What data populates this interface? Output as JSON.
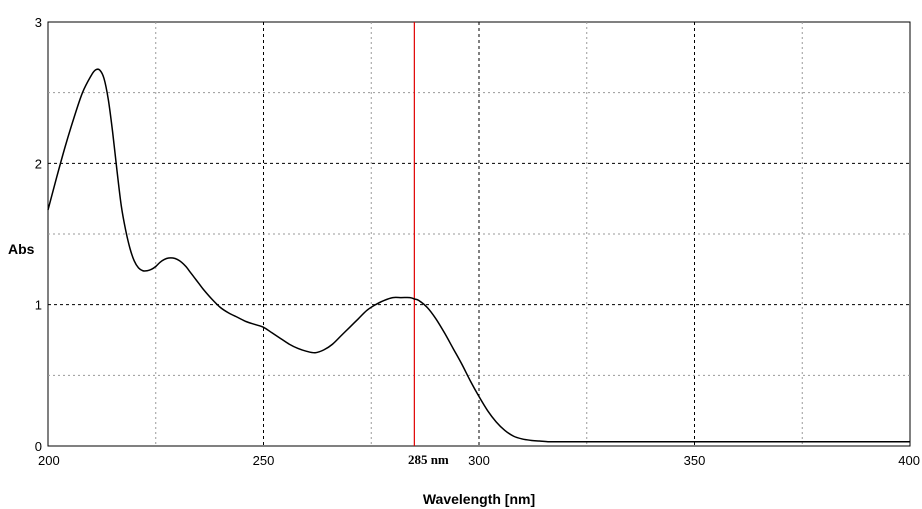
{
  "chart_data": {
    "type": "line",
    "title": "",
    "xlabel": "Wavelength [nm]",
    "ylabel": "Abs",
    "xlim": [
      200,
      400
    ],
    "ylim": [
      0,
      3
    ],
    "x_ticks": [
      "200",
      "250",
      "300",
      "350",
      "400"
    ],
    "y_ticks": [
      "0",
      "1",
      "2",
      "3"
    ],
    "grid": true,
    "marker_line": {
      "x": 285,
      "color": "#e00000"
    },
    "annotation": {
      "text": "285 nm",
      "x": 285
    },
    "line_color": "#000000",
    "series": [
      {
        "x": [
          200,
          202,
          204,
          206,
          208,
          210,
          211,
          212,
          213,
          214,
          215,
          216,
          217,
          218,
          219,
          220,
          221,
          222,
          223,
          224,
          225,
          226,
          227,
          228,
          229,
          230,
          231,
          232,
          233,
          234,
          235,
          236,
          238,
          240,
          242,
          244,
          246,
          248,
          250,
          252,
          254,
          256,
          258,
          260,
          262,
          264,
          266,
          268,
          270,
          272,
          274,
          276,
          278,
          280,
          282,
          284,
          285,
          286,
          288,
          290,
          292,
          294,
          296,
          298,
          300,
          302,
          304,
          306,
          308,
          310,
          312,
          314,
          316,
          318,
          320,
          322,
          325,
          330,
          340,
          350,
          360,
          370,
          380,
          390,
          400
        ],
        "y": [
          1.67,
          1.9,
          2.12,
          2.32,
          2.5,
          2.62,
          2.66,
          2.66,
          2.6,
          2.45,
          2.22,
          1.95,
          1.7,
          1.53,
          1.4,
          1.31,
          1.26,
          1.24,
          1.24,
          1.25,
          1.27,
          1.3,
          1.32,
          1.33,
          1.33,
          1.32,
          1.3,
          1.27,
          1.23,
          1.19,
          1.15,
          1.11,
          1.04,
          0.98,
          0.94,
          0.91,
          0.88,
          0.86,
          0.84,
          0.8,
          0.76,
          0.72,
          0.69,
          0.67,
          0.66,
          0.68,
          0.72,
          0.78,
          0.84,
          0.9,
          0.96,
          1.0,
          1.03,
          1.05,
          1.05,
          1.05,
          1.04,
          1.03,
          0.98,
          0.9,
          0.8,
          0.69,
          0.58,
          0.46,
          0.35,
          0.25,
          0.17,
          0.11,
          0.07,
          0.05,
          0.04,
          0.035,
          0.03,
          0.03,
          0.03,
          0.03,
          0.03,
          0.03,
          0.03,
          0.03,
          0.03,
          0.03,
          0.03,
          0.03,
          0.03
        ]
      }
    ]
  }
}
